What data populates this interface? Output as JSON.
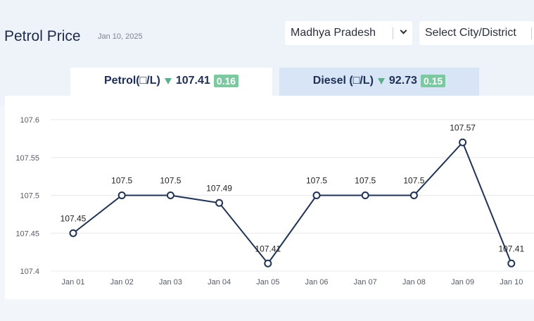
{
  "page": {
    "title": "Petrol Price",
    "date": "Jan 10, 2025"
  },
  "filters": {
    "state": {
      "value": "Madhya Pradesh"
    },
    "city": {
      "placeholder": "Select City/District"
    }
  },
  "tabs": [
    {
      "label": "Petrol(□/L)",
      "price": "107.41",
      "change": "0.16",
      "direction": "down",
      "active": true
    },
    {
      "label": "Diesel (□/L)",
      "price": "92.73",
      "change": "0.15",
      "direction": "down",
      "active": false
    }
  ],
  "colors": {
    "line": "#1f3354",
    "badge": "#7cc8a1",
    "arrow": "#5bb08d",
    "active_tab": "#ffffff",
    "inactive_tab": "#d7e5f6"
  },
  "chart_data": {
    "type": "line",
    "categories": [
      "Jan 01",
      "Jan 02",
      "Jan 03",
      "Jan 04",
      "Jan 05",
      "Jan 06",
      "Jan 07",
      "Jan 08",
      "Jan 09",
      "Jan 10"
    ],
    "values": [
      107.45,
      107.5,
      107.5,
      107.49,
      107.41,
      107.5,
      107.5,
      107.5,
      107.57,
      107.41
    ],
    "value_labels": [
      "107.45",
      "107.5",
      "107.5",
      "107.49",
      "107.41",
      "107.5",
      "107.5",
      "107.5",
      "107.57",
      "107.41"
    ],
    "y_ticks": [
      107.4,
      107.45,
      107.5,
      107.55,
      107.6
    ],
    "y_tick_labels": [
      "107.4",
      "107.45",
      "107.5",
      "107.55",
      "107.6"
    ],
    "ylim": [
      107.4,
      107.6
    ],
    "grid": true,
    "title": "",
    "xlabel": "",
    "ylabel": ""
  }
}
